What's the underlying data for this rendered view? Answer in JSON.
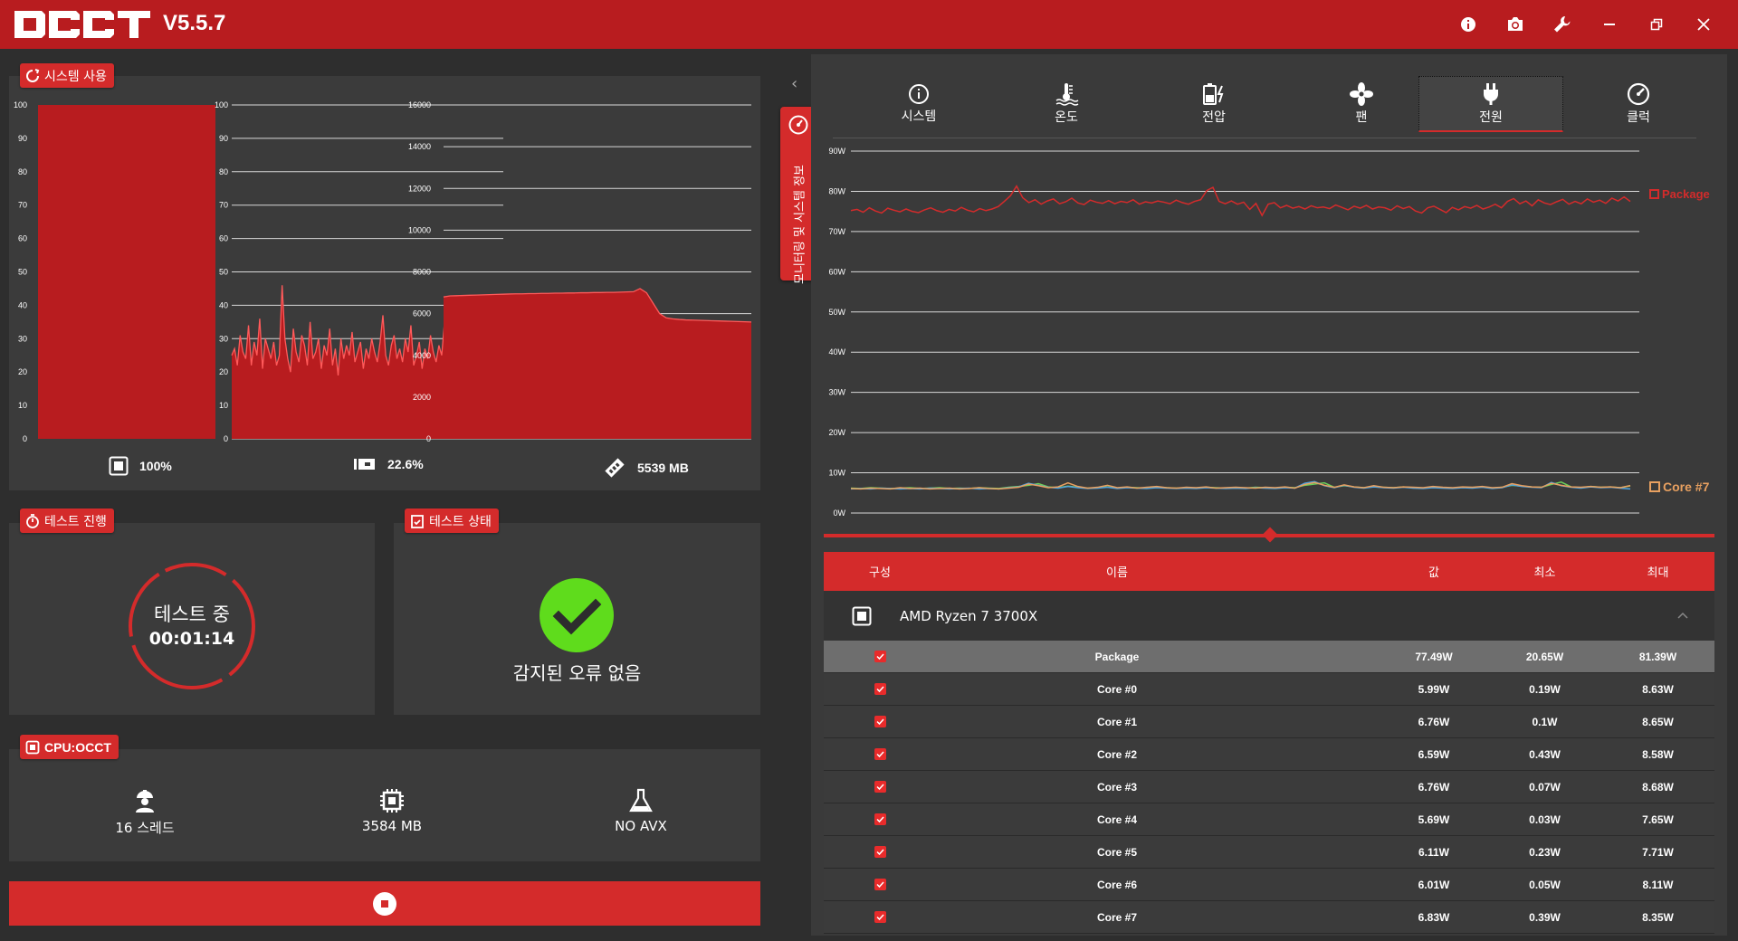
{
  "app": {
    "version": "V5.5.7",
    "accent": "#d42b2b",
    "titlebar_color": "#b81c1f",
    "titlebar_icons": [
      "info-icon",
      "camera-icon",
      "wrench-icon",
      "minimize-icon",
      "restore-icon",
      "close-icon"
    ]
  },
  "system_usage": {
    "tag": "시스템 사용",
    "cpu_label": "100%",
    "ram_label": "22.6%",
    "mem_label": "5539 MB"
  },
  "test_progress": {
    "tag": "테스트 진행",
    "status": "테스트 중",
    "time": "00:01:14"
  },
  "test_status": {
    "tag": "테스트 상태",
    "message": "감지된 오류 없음"
  },
  "cpu_test": {
    "tag": "CPU:OCCT",
    "threads": "16 스레드",
    "memory": "3584 MB",
    "avx": "NO AVX"
  },
  "monitor_tab_label": "모니터링 및 시스템 정보",
  "tabs": [
    {
      "label": "시스템",
      "icon": "info-icon",
      "active": false
    },
    {
      "label": "온도",
      "icon": "thermometer-icon",
      "active": false
    },
    {
      "label": "전압",
      "icon": "battery-icon",
      "active": false
    },
    {
      "label": "팬",
      "icon": "fan-icon",
      "active": false
    },
    {
      "label": "전원",
      "icon": "plug-icon",
      "active": true
    },
    {
      "label": "클럭",
      "icon": "gauge-icon",
      "active": false
    }
  ],
  "legend": {
    "package": "Package",
    "core": "Core #7"
  },
  "chart_data": [
    {
      "type": "bar",
      "categories": [
        ""
      ],
      "values": [
        100
      ],
      "ylim": [
        0,
        100
      ],
      "yticks": [
        "0",
        "10",
        "20",
        "30",
        "40",
        "50",
        "60",
        "70",
        "80",
        "90",
        "100"
      ]
    },
    {
      "type": "area",
      "ylim": [
        0,
        100
      ],
      "yticks": [
        "0",
        "10",
        "20",
        "30",
        "40",
        "50",
        "60",
        "70",
        "80",
        "90",
        "100"
      ],
      "series": [
        {
          "values": [
            25,
            27,
            22,
            31,
            26,
            24,
            34,
            22,
            29,
            25,
            36,
            21,
            30,
            27,
            24,
            29,
            22,
            25,
            46,
            30,
            24,
            20,
            33,
            26,
            23,
            31,
            28,
            22,
            35,
            24,
            26,
            30,
            21,
            28,
            25,
            33,
            22,
            27,
            19,
            30,
            24,
            28,
            25,
            32,
            23,
            26,
            29,
            21,
            27,
            24,
            30,
            26,
            23,
            29,
            37,
            25,
            22,
            28,
            31,
            24,
            27,
            23,
            30,
            26,
            34,
            22,
            25,
            29,
            21,
            27,
            24,
            31,
            26,
            23,
            28,
            25,
            35,
            22,
            29,
            24,
            32,
            27,
            30,
            26,
            23,
            29,
            25,
            33,
            21,
            27,
            35,
            24,
            31,
            26,
            22,
            29,
            34,
            25
          ]
        }
      ]
    },
    {
      "type": "area",
      "ylim": [
        0,
        16000
      ],
      "yticks": [
        "0",
        "2000",
        "4000",
        "6000",
        "8000",
        "10000",
        "12000",
        "14000",
        "16000"
      ],
      "series": [
        {
          "values": [
            6800,
            6850,
            6860,
            6870,
            6880,
            6890,
            6900,
            6910,
            6920,
            6930,
            6940,
            6950,
            6950,
            6960,
            6960,
            6970,
            6970,
            6980,
            6980,
            6990,
            6990,
            7000,
            7000,
            7010,
            7010,
            7020,
            7020,
            7030,
            7040,
            7050,
            7200,
            7000,
            6500,
            6000,
            5800,
            5750,
            5720,
            5700,
            5690,
            5680,
            5670,
            5660,
            5650,
            5640,
            5630,
            5620,
            5610,
            5600
          ]
        }
      ]
    },
    {
      "type": "line",
      "ylim": [
        0,
        90
      ],
      "yticks": [
        "0W",
        "10W",
        "20W",
        "30W",
        "40W",
        "50W",
        "60W",
        "70W",
        "80W",
        "90W"
      ],
      "series": [
        {
          "name": "Package",
          "color": "#d42b2b",
          "values": [
            75.2,
            75.5,
            74.8,
            75.9,
            75.1,
            74.6,
            75.8,
            75.3,
            74.9,
            75.6,
            75.0,
            74.7,
            75.4,
            75.9,
            75.2,
            74.8,
            75.5,
            75.1,
            76.0,
            75.3,
            74.9,
            75.7,
            75.2,
            75.6,
            76.2,
            77.5,
            78.9,
            81.3,
            78.4,
            77.2,
            77.9,
            76.8,
            77.6,
            78.1,
            76.9,
            77.4,
            78.3,
            77.1,
            76.7,
            77.8,
            77.3,
            77.0,
            77.7,
            76.9,
            77.5,
            77.2,
            77.9,
            76.8,
            77.4,
            77.1,
            77.6,
            77.3,
            76.9,
            77.8,
            77.2,
            76.8,
            77.5,
            77.9,
            80.2,
            81.0,
            77.5,
            76.9,
            77.6,
            76.8,
            77.3,
            75.5,
            77.0,
            74.0,
            76.8,
            77.2,
            75.9,
            76.5,
            75.8,
            76.2,
            75.6,
            76.4,
            75.9,
            76.1,
            75.7,
            76.6,
            76.0,
            75.4,
            76.3,
            75.8,
            76.5,
            75.6,
            76.1,
            75.9,
            75.3,
            76.4,
            75.7,
            76.2,
            75.1,
            74.6,
            75.9,
            76.3,
            75.5,
            74.7,
            76.0,
            75.4,
            76.2,
            75.8,
            76.5,
            75.6,
            76.1,
            76.8,
            75.9,
            77.5,
            78.2,
            76.9,
            77.6,
            76.4,
            77.9,
            77.1,
            76.7,
            77.4,
            78.0,
            76.8,
            77.5,
            76.9,
            78.1,
            77.3,
            77.8,
            77.0,
            78.3,
            77.6,
            78.6,
            77.49
          ]
        },
        {
          "name": "Core #7",
          "color": "#e8a060",
          "values": [
            6.1,
            6.0,
            6.2,
            6.1,
            6.0,
            6.3,
            6.1,
            6.2,
            6.0,
            6.1,
            6.2,
            6.0,
            6.1,
            6.3,
            6.1,
            6.0,
            6.2,
            6.4,
            7.2,
            6.8,
            6.3,
            6.5,
            7.5,
            6.6,
            6.2,
            6.4,
            6.9,
            6.3,
            6.5,
            6.2,
            6.4,
            6.6,
            6.3,
            6.2,
            6.4,
            6.3,
            6.5,
            6.2,
            6.3,
            6.4,
            6.3,
            6.2,
            6.4,
            6.3,
            6.5,
            6.2,
            7.1,
            7.6,
            6.9,
            6.4,
            7.0,
            6.5,
            6.3,
            6.8,
            6.4,
            6.3,
            6.5,
            6.4,
            6.3,
            6.6,
            6.4,
            6.3,
            6.5,
            6.4,
            6.6,
            6.3,
            6.4,
            7.3,
            6.8,
            6.5,
            6.4,
            7.4,
            6.9,
            6.5,
            6.4,
            6.6,
            6.4,
            6.5,
            6.3,
            6.83
          ]
        },
        {
          "name": "Core #0",
          "color": "#4fa3e0",
          "values": [
            6.0,
            6.1,
            6.0,
            6.2,
            6.1,
            6.0,
            6.1,
            6.0,
            6.2,
            6.1,
            6.0,
            6.1,
            6.2,
            6.0,
            6.1,
            6.0,
            6.3,
            6.5,
            7.4,
            6.9,
            6.4,
            6.2,
            6.6,
            6.3,
            6.1,
            6.2,
            6.4,
            6.1,
            6.3,
            6.2,
            6.1,
            6.3,
            6.2,
            6.1,
            6.2,
            6.1,
            6.3,
            6.2,
            6.1,
            6.2,
            6.1,
            6.3,
            6.2,
            6.1,
            6.3,
            6.2,
            7.4,
            7.8,
            6.8,
            6.3,
            6.9,
            6.4,
            6.2,
            6.5,
            6.3,
            6.2,
            6.4,
            6.2,
            6.1,
            6.3,
            6.2,
            6.1,
            6.3,
            6.2,
            6.4,
            6.1,
            6.3,
            7.0,
            6.6,
            6.4,
            6.3,
            7.6,
            6.8,
            6.4,
            6.2,
            6.5,
            6.3,
            6.4,
            6.2,
            5.99
          ]
        },
        {
          "name": "Core #3",
          "color": "#6ccf5a",
          "values": [
            6.2,
            6.1,
            6.3,
            6.2,
            6.1,
            6.2,
            6.3,
            6.1,
            6.2,
            6.3,
            6.1,
            6.2,
            6.1,
            6.3,
            6.2,
            6.1,
            6.4,
            6.6,
            6.9,
            7.3,
            6.5,
            6.3,
            6.7,
            6.4,
            6.2,
            6.3,
            6.5,
            6.2,
            6.4,
            6.3,
            6.2,
            6.4,
            6.3,
            6.2,
            6.3,
            6.2,
            6.4,
            6.3,
            6.2,
            6.3,
            6.2,
            6.4,
            6.3,
            6.2,
            6.4,
            6.3,
            6.9,
            7.2,
            7.5,
            6.4,
            6.8,
            6.5,
            6.3,
            6.6,
            6.4,
            6.3,
            6.5,
            6.3,
            6.2,
            6.4,
            6.3,
            6.2,
            6.4,
            6.3,
            6.5,
            6.2,
            6.4,
            6.9,
            6.7,
            6.5,
            6.4,
            7.1,
            7.7,
            6.5,
            6.3,
            6.6,
            6.4,
            6.5,
            6.3,
            6.76
          ]
        }
      ]
    }
  ],
  "table": {
    "headers": {
      "part": "구성",
      "name": "이름",
      "value": "값",
      "min": "최소",
      "max": "최대"
    },
    "group": "AMD Ryzen 7 3700X",
    "rows": [
      {
        "name": "Package",
        "value": "77.49W",
        "min": "20.65W",
        "max": "81.39W"
      },
      {
        "name": "Core #0",
        "value": "5.99W",
        "min": "0.19W",
        "max": "8.63W"
      },
      {
        "name": "Core #1",
        "value": "6.76W",
        "min": "0.1W",
        "max": "8.65W"
      },
      {
        "name": "Core #2",
        "value": "6.59W",
        "min": "0.43W",
        "max": "8.58W"
      },
      {
        "name": "Core #3",
        "value": "6.76W",
        "min": "0.07W",
        "max": "8.68W"
      },
      {
        "name": "Core #4",
        "value": "5.69W",
        "min": "0.03W",
        "max": "7.65W"
      },
      {
        "name": "Core #5",
        "value": "6.11W",
        "min": "0.23W",
        "max": "7.71W"
      },
      {
        "name": "Core #6",
        "value": "6.01W",
        "min": "0.05W",
        "max": "8.11W"
      },
      {
        "name": "Core #7",
        "value": "6.83W",
        "min": "0.39W",
        "max": "8.35W"
      }
    ]
  }
}
